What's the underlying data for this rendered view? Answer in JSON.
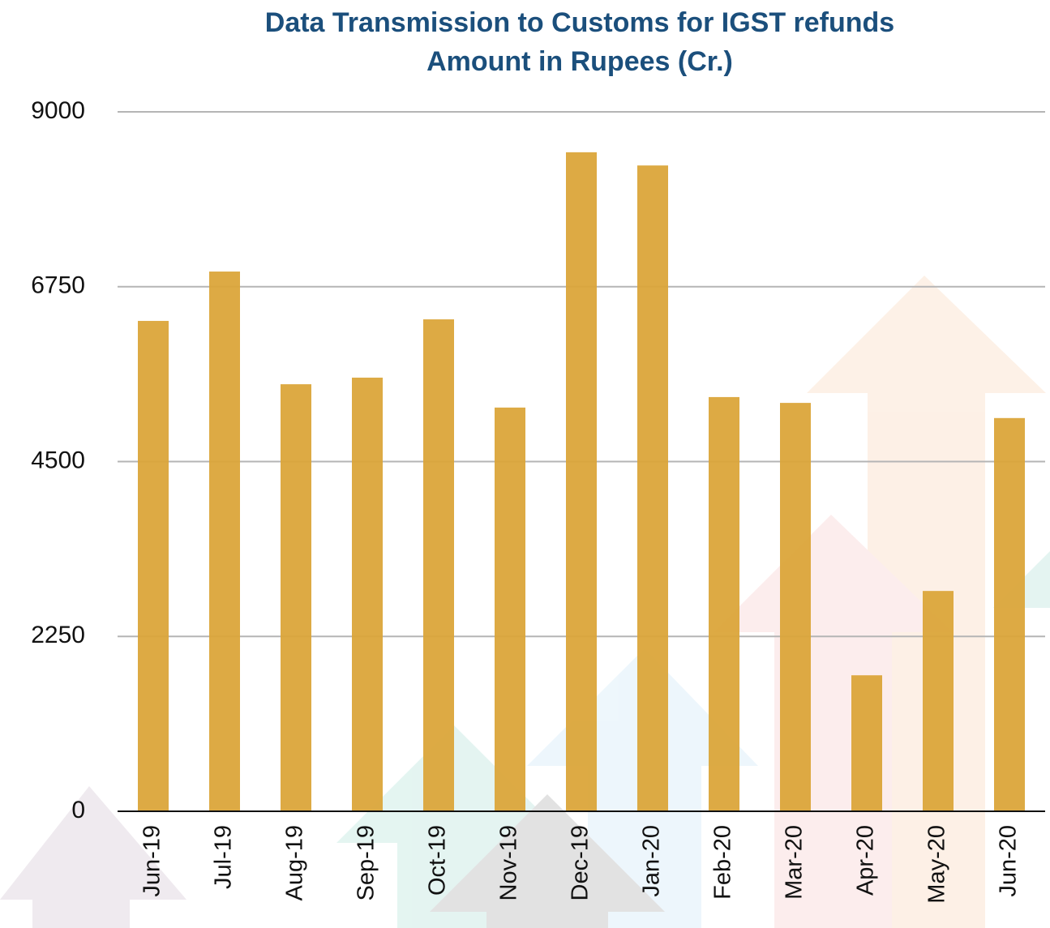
{
  "chart_data": {
    "type": "bar",
    "title": "Data Transmission to Customs for IGST refunds",
    "subtitle": "Amount in Rupees (Cr.)",
    "categories": [
      "Jun-19",
      "Jul-19",
      "Aug-19",
      "Sep-19",
      "Oct-19",
      "Nov-19",
      "Dec-19",
      "Jan-20",
      "Feb-20",
      "Mar-20",
      "Apr-20",
      "May-20",
      "Jun-20"
    ],
    "values": [
      6310,
      6945,
      5495,
      5580,
      6330,
      5195,
      8480,
      8310,
      5330,
      5255,
      1750,
      2835,
      5060
    ],
    "color": "#dba53a",
    "ylim": [
      0,
      9000
    ],
    "yticks": [
      0,
      2250,
      4500,
      6750,
      9000
    ],
    "grid": true
  }
}
